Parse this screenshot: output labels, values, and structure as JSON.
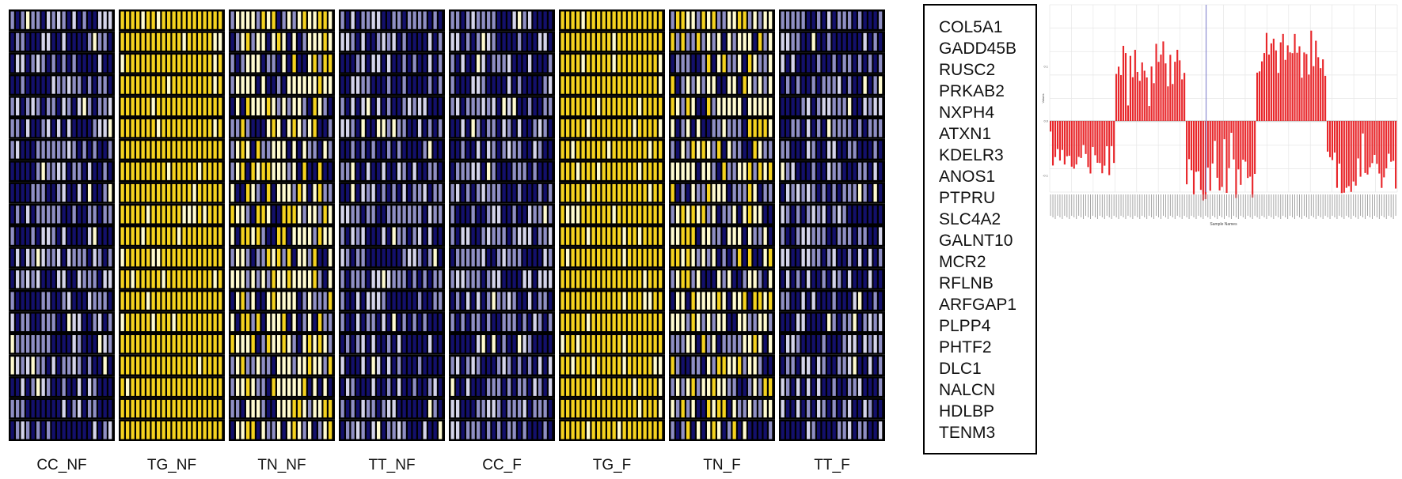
{
  "chart_data": [
    {
      "type": "heatmap",
      "panels": [
        {
          "label": "CC_NF",
          "palette": "blue"
        },
        {
          "label": "TG_NF",
          "palette": "yellow"
        },
        {
          "label": "TN_NF",
          "palette": "mixed"
        },
        {
          "label": "TT_NF",
          "palette": "blue"
        },
        {
          "label": "CC_F",
          "palette": "blue"
        },
        {
          "label": "TG_F",
          "palette": "yellow"
        },
        {
          "label": "TN_F",
          "palette": "mixed"
        },
        {
          "label": "TT_F",
          "palette": "blue"
        }
      ],
      "rows": [
        "COL5A1",
        "GADD45B",
        "RUSC2",
        "PRKAB2",
        "NXPH4",
        "ATXN1",
        "KDELR3",
        "ANOS1",
        "PTPRU",
        "SLC4A2",
        "GALNT10",
        "MCR2",
        "RFLNB",
        "ARFGAP1",
        "PLPP4",
        "PHTF2",
        "DLC1",
        "NALCN",
        "HDLBP",
        "TENM3"
      ],
      "columns_per_panel": 20,
      "colors": {
        "low": "#13106b",
        "mid": "#8f8fc4",
        "light": "#d4d4ea",
        "pale": "#fffbd0",
        "high": "#f4d21f",
        "border": "#000000"
      }
    },
    {
      "type": "bar",
      "ylabel": "Values",
      "xlabel": "Sample Names",
      "yticks": [
        "0.1",
        "0.0",
        "-0.1"
      ],
      "bar_color": "#e8262a",
      "segments": [
        {
          "n": 28,
          "sign": -1,
          "mean": 0.06
        },
        {
          "n": 30,
          "sign": 1,
          "mean": 0.09
        },
        {
          "n": 30,
          "sign": -1,
          "mean": 0.09
        },
        {
          "n": 30,
          "sign": 1,
          "mean": 0.1
        },
        {
          "n": 30,
          "sign": -1,
          "mean": 0.08
        }
      ]
    }
  ]
}
